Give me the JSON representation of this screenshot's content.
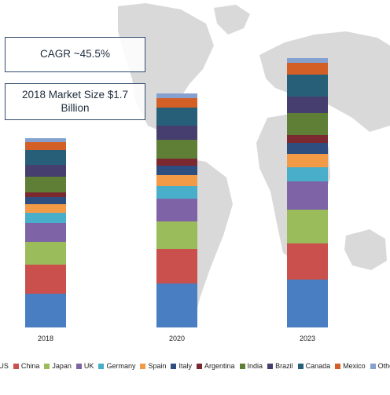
{
  "callouts": {
    "cagr": "CAGR ~45.5%",
    "market_size": "2018 Market Size $1.7 Billion"
  },
  "chart_data": {
    "type": "bar",
    "stacked": true,
    "title": "",
    "xlabel": "",
    "ylabel": "",
    "categories": [
      "2018",
      "2020",
      "2023"
    ],
    "series": [
      {
        "name": "US",
        "color": "#4a7ec2",
        "values": [
          43,
          56,
          61
        ]
      },
      {
        "name": "China",
        "color": "#c9504d",
        "values": [
          37,
          44,
          46
        ]
      },
      {
        "name": "Japan",
        "color": "#9bbc5a",
        "values": [
          29,
          35,
          43
        ]
      },
      {
        "name": "UK",
        "color": "#7e64a6",
        "values": [
          24,
          29,
          36
        ]
      },
      {
        "name": "Germany",
        "color": "#48aec9",
        "values": [
          13,
          16,
          18
        ]
      },
      {
        "name": "Spain",
        "color": "#f39a46",
        "values": [
          11,
          14,
          17
        ]
      },
      {
        "name": "Italy",
        "color": "#2d4e7e",
        "values": [
          9,
          12,
          14
        ]
      },
      {
        "name": "Argentina",
        "color": "#7b2830",
        "values": [
          6,
          9,
          10
        ]
      },
      {
        "name": "India",
        "color": "#5f7f36",
        "values": [
          20,
          24,
          28
        ]
      },
      {
        "name": "Brazil",
        "color": "#463e6e",
        "values": [
          15,
          18,
          21
        ]
      },
      {
        "name": "Canada",
        "color": "#275f78",
        "values": [
          19,
          23,
          28
        ]
      },
      {
        "name": "Mexico",
        "color": "#d35f26",
        "values": [
          10,
          12,
          15
        ]
      },
      {
        "name": "Others",
        "color": "#86a1cf",
        "values": [
          5,
          6,
          6
        ]
      }
    ]
  }
}
